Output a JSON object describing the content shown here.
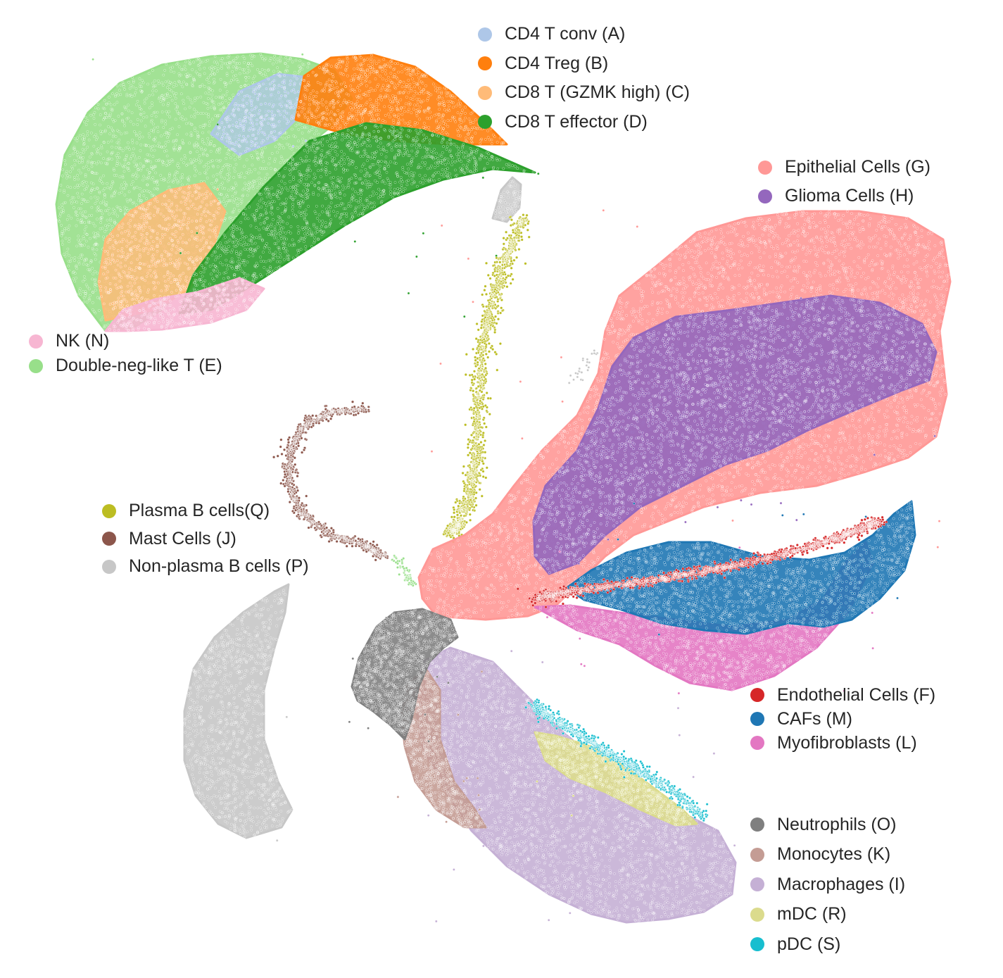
{
  "chart_data": {
    "type": "scatter",
    "title": "",
    "xlabel": "",
    "ylabel": "",
    "axes_visible": false,
    "grid": false,
    "legend_placement": "split into groups placed next to each cluster",
    "series": [
      {
        "key": "A",
        "name": "CD4 T conv (A)",
        "color": "#aec7e8"
      },
      {
        "key": "B",
        "name": "CD4 Treg (B)",
        "color": "#ff7f0e"
      },
      {
        "key": "C",
        "name": "CD8 T (GZMK high) (C)",
        "color": "#ffbb78"
      },
      {
        "key": "D",
        "name": "CD8 T effector (D)",
        "color": "#2ca02c"
      },
      {
        "key": "E",
        "name": "Double-neg-like T (E)",
        "color": "#98df8a"
      },
      {
        "key": "F",
        "name": "Endothelial Cells (F)",
        "color": "#d62728"
      },
      {
        "key": "G",
        "name": "Epithelial Cells (G)",
        "color": "#ff9896"
      },
      {
        "key": "H",
        "name": "Glioma Cells (H)",
        "color": "#9467bd"
      },
      {
        "key": "I",
        "name": "Macrophages (I)",
        "color": "#c5b0d5"
      },
      {
        "key": "J",
        "name": "Mast Cells (J)",
        "color": "#8c564b"
      },
      {
        "key": "K",
        "name": "Monocytes (K)",
        "color": "#c49c94"
      },
      {
        "key": "L",
        "name": "Myofibroblasts (L)",
        "color": "#e377c2"
      },
      {
        "key": "M",
        "name": "CAFs (M)",
        "color": "#1f77b4"
      },
      {
        "key": "N",
        "name": "NK (N)",
        "color": "#f7b6d2"
      },
      {
        "key": "O",
        "name": "Neutrophils (O)",
        "color": "#7f7f7f"
      },
      {
        "key": "P",
        "name": "Non-plasma B cells (P)",
        "color": "#c7c7c7"
      },
      {
        "key": "Q",
        "name": "Plasma B cells(Q)",
        "color": "#bcbd22"
      },
      {
        "key": "R",
        "name": "mDC (R)",
        "color": "#dbdb8d"
      },
      {
        "key": "S",
        "name": "pDC (S)",
        "color": "#17becf"
      }
    ],
    "legend_groups": [
      {
        "id": "t-cells",
        "keys": [
          "A",
          "B",
          "C",
          "D"
        ]
      },
      {
        "id": "tumor",
        "keys": [
          "G",
          "H"
        ]
      },
      {
        "id": "nk-dn",
        "keys": [
          "N",
          "E"
        ]
      },
      {
        "id": "b-mast",
        "keys": [
          "Q",
          "J",
          "P"
        ]
      },
      {
        "id": "stroma",
        "keys": [
          "F",
          "M",
          "L"
        ]
      },
      {
        "id": "myeloid",
        "keys": [
          "O",
          "K",
          "I",
          "R",
          "S"
        ]
      }
    ]
  }
}
